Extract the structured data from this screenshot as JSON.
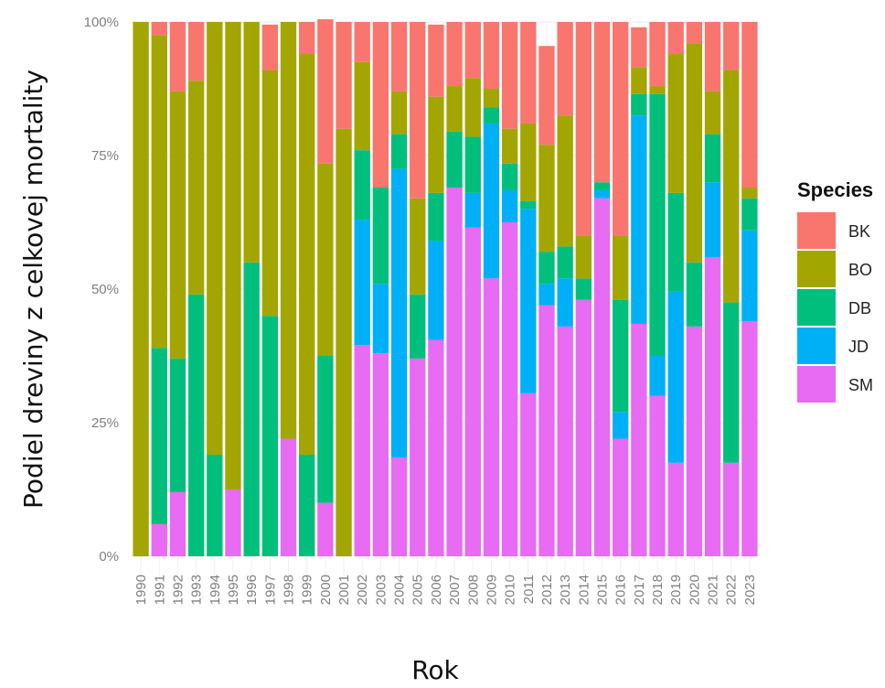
{
  "chart_data": {
    "type": "bar",
    "stacked": "percent",
    "xlabel": "Rok",
    "ylabel": "Podiel dreviny z celkovej mortality",
    "y_ticks": [
      "0%",
      "25%",
      "50%",
      "75%",
      "100%"
    ],
    "ylim": [
      0,
      1
    ],
    "grid": true,
    "legend": {
      "title": "Species",
      "position": "right"
    },
    "categories": [
      "1990",
      "1991",
      "1992",
      "1993",
      "1994",
      "1995",
      "1996",
      "1997",
      "1998",
      "1999",
      "2000",
      "2001",
      "2002",
      "2003",
      "2004",
      "2005",
      "2006",
      "2007",
      "2008",
      "2009",
      "2010",
      "2011",
      "2012",
      "2013",
      "2014",
      "2015",
      "2016",
      "2017",
      "2018",
      "2019",
      "2020",
      "2021",
      "2022",
      "2023"
    ],
    "series": [
      {
        "name": "BK",
        "color": "#F8766D",
        "values": [
          0,
          0.025,
          0.13,
          0.11,
          0,
          0,
          0,
          0.085,
          0,
          0.06,
          0.27,
          0.2,
          0.075,
          0.31,
          0.13,
          0.33,
          0.135,
          0.12,
          0.105,
          0.125,
          0.2,
          0.19,
          0.185,
          0.175,
          0.4,
          0.3,
          0.4,
          0.075,
          0.12,
          0.06,
          0.04,
          0.13,
          0.09,
          0.31
        ]
      },
      {
        "name": "BO",
        "color": "#A3A500",
        "values": [
          1.0,
          0.585,
          0.5,
          0.4,
          0.81,
          0.875,
          0.45,
          0.46,
          0.78,
          0.75,
          0.36,
          0.8,
          0.165,
          0,
          0.08,
          0.18,
          0.18,
          0.085,
          0.11,
          0.035,
          0.065,
          0.145,
          0.2,
          0.245,
          0.08,
          0,
          0.12,
          0.05,
          0.015,
          0.26,
          0.41,
          0.08,
          0.435,
          0.02
        ]
      },
      {
        "name": "DB",
        "color": "#00BF7D",
        "values": [
          0,
          0.33,
          0.25,
          0.49,
          0.19,
          0,
          0.55,
          0.45,
          0,
          0.19,
          0.275,
          0,
          0.13,
          0.18,
          0.065,
          0.12,
          0.09,
          0.105,
          0.105,
          0.03,
          0.05,
          0.015,
          0.06,
          0.06,
          0.04,
          0.015,
          0.21,
          0.04,
          0.49,
          0.185,
          0.12,
          0.09,
          0.3,
          0.06
        ]
      },
      {
        "name": "JD",
        "color": "#00B0F6",
        "values": [
          0,
          0,
          0,
          0,
          0,
          0,
          0,
          0,
          0,
          0,
          0,
          0,
          0.235,
          0.13,
          0.54,
          0,
          0.185,
          0,
          0.065,
          0.29,
          0.06,
          0.345,
          0.04,
          0.09,
          0,
          0.015,
          0.05,
          0.39,
          0.075,
          0.32,
          0,
          0.14,
          0,
          0.17
        ]
      },
      {
        "name": "SM",
        "color": "#E76BF3",
        "values": [
          0,
          0.06,
          0.12,
          0,
          0,
          0.125,
          0,
          0,
          0.22,
          0,
          0.1,
          0,
          0.395,
          0.38,
          0.185,
          0.37,
          0.405,
          0.69,
          0.615,
          0.52,
          0.625,
          0.305,
          0.47,
          0.43,
          0.48,
          0.67,
          0.22,
          0.435,
          0.3,
          0.175,
          0.43,
          0.56,
          0.175,
          0.44
        ]
      }
    ]
  }
}
